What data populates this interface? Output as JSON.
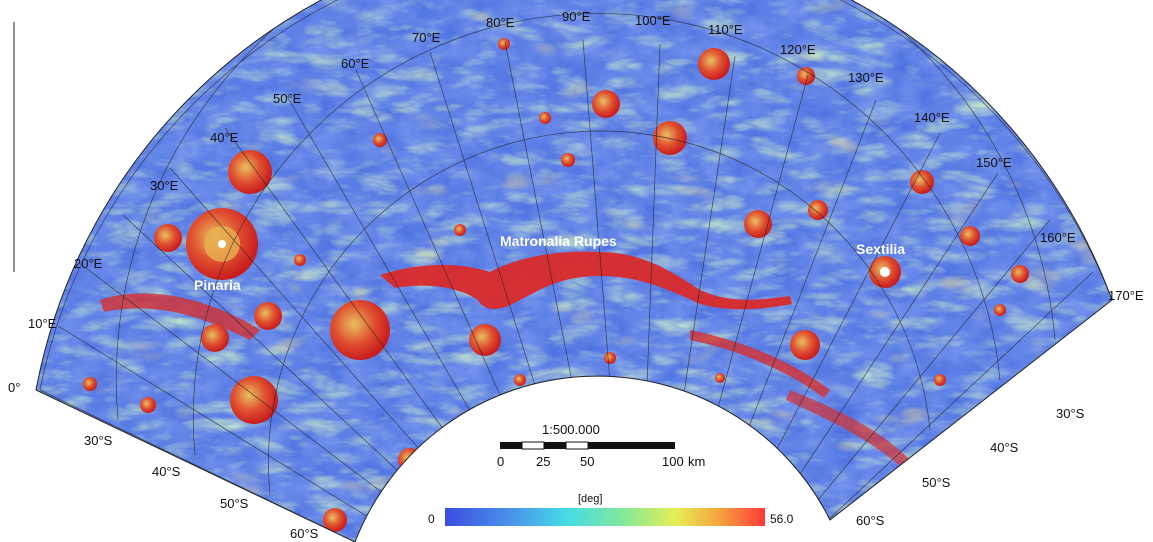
{
  "map": {
    "longitude_labels": [
      "0°",
      "10°E",
      "20°E",
      "30°E",
      "40°E",
      "50°E",
      "60°E",
      "70°E",
      "80°E",
      "90°E",
      "100°E",
      "110°E",
      "120°E",
      "130°E",
      "140°E",
      "150°E",
      "160°E",
      "170°E"
    ],
    "latitude_labels_left": [
      "30°S",
      "40°S",
      "50°S",
      "60°S"
    ],
    "latitude_labels_right": [
      "30°S",
      "40°S",
      "50°S",
      "60°S"
    ],
    "features": [
      "Pinaria",
      "Matronalia Rupes",
      "Sextilia"
    ],
    "scale": {
      "ratio": "1:500.000",
      "ticks": [
        "0",
        "25",
        "50",
        "100"
      ],
      "unit": "km"
    },
    "colorbar": {
      "title": "[deg]",
      "min": "0",
      "max": "56.0",
      "colors": [
        "#3b4fe0",
        "#4a8be8",
        "#44d8e8",
        "#7ee8a0",
        "#e8f05a",
        "#f0a040",
        "#ff3b3b"
      ]
    },
    "colors": {
      "low": "#3b5ce0",
      "mid": "#6ad0c0",
      "high": "#e8d860",
      "steep": "#e03030"
    }
  }
}
